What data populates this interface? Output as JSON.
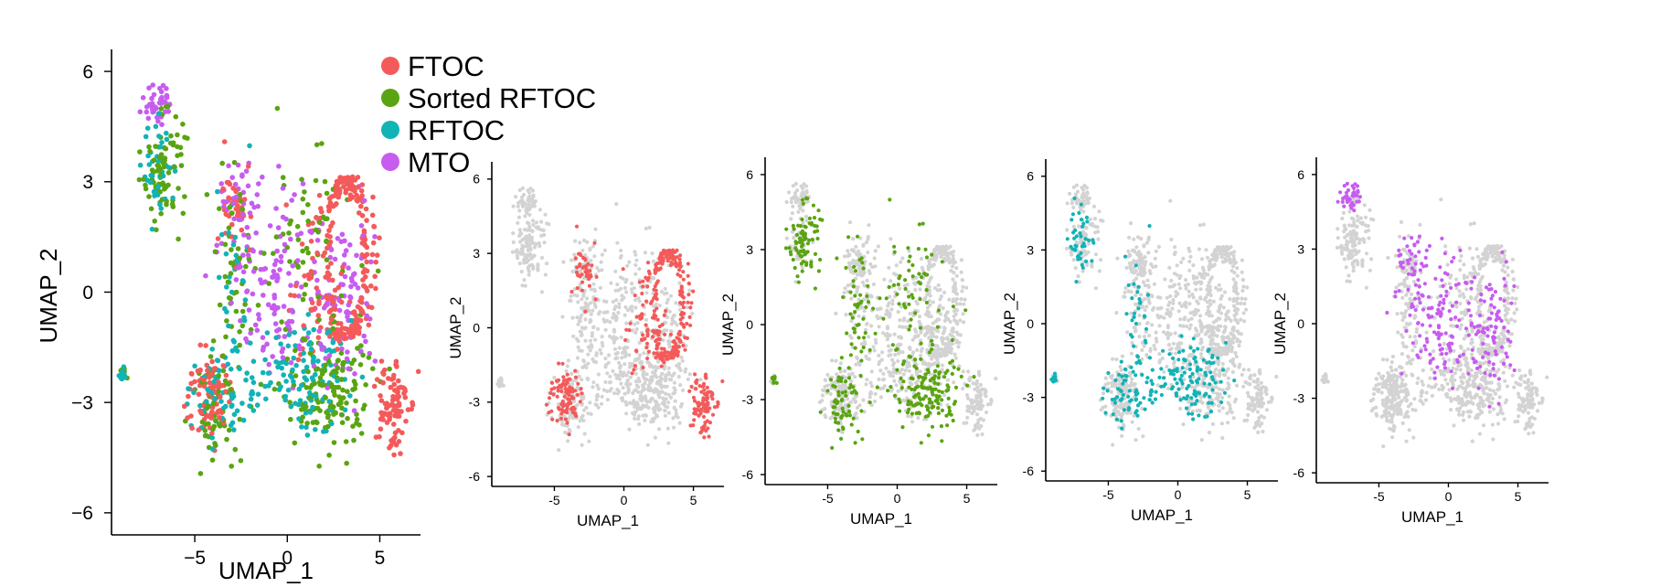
{
  "chart_data": [
    {
      "type": "scatter",
      "title": "",
      "xlabel": "UMAP_1",
      "ylabel": "UMAP_2",
      "xlim": [
        -9.5,
        7.2
      ],
      "ylim": [
        -6.6,
        6.4
      ],
      "x_ticks": [
        -5,
        0,
        5
      ],
      "y_ticks": [
        -6,
        -3,
        0,
        3,
        6
      ],
      "x_tick_labels": [
        "−5",
        "0",
        "5"
      ],
      "y_tick_labels": [
        "−6",
        "−3",
        "0",
        "3",
        "6"
      ],
      "legend": {
        "placement": "top-right",
        "entries": [
          {
            "label": "FTOC",
            "color": "#f45a5a"
          },
          {
            "label": "Sorted RFTOC",
            "color": "#5aa411"
          },
          {
            "label": "RFTOC",
            "color": "#12b3b6"
          },
          {
            "label": "MTO",
            "color": "#c75cf0"
          }
        ]
      },
      "series": [
        {
          "name": "FTOC",
          "color": "#f45a5a"
        },
        {
          "name": "Sorted RFTOC",
          "color": "#5aa411"
        },
        {
          "name": "RFTOC",
          "color": "#12b3b6"
        },
        {
          "name": "MTO",
          "color": "#c75cf0"
        }
      ]
    },
    {
      "type": "scatter",
      "xlabel": "UMAP_1",
      "ylabel": "UMAP_2",
      "xlim": [
        -9.5,
        7.2
      ],
      "ylim": [
        -6.4,
        6.4
      ],
      "x_ticks": [
        -5,
        0,
        5
      ],
      "y_ticks": [
        -6,
        -3,
        0,
        3,
        6
      ],
      "x_tick_labels": [
        "-5",
        "0",
        "5"
      ],
      "y_tick_labels": [
        "-6",
        "-3",
        "0",
        "3",
        "6"
      ],
      "highlight": "FTOC",
      "highlight_color": "#f45a5a",
      "background_color": "#d3d3d3"
    },
    {
      "type": "scatter",
      "xlabel": "UMAP_1",
      "ylabel": "UMAP_2",
      "xlim": [
        -9.5,
        7.2
      ],
      "ylim": [
        -6.4,
        6.4
      ],
      "x_ticks": [
        -5,
        0,
        5
      ],
      "y_ticks": [
        -6,
        -3,
        0,
        3,
        6
      ],
      "x_tick_labels": [
        "-5",
        "0",
        "5"
      ],
      "y_tick_labels": [
        "-6",
        "-3",
        "0",
        "3",
        "6"
      ],
      "highlight": "Sorted RFTOC",
      "highlight_color": "#5aa411",
      "background_color": "#d3d3d3"
    },
    {
      "type": "scatter",
      "xlabel": "UMAP_1",
      "ylabel": "UMAP_2",
      "xlim": [
        -9.5,
        7.2
      ],
      "ylim": [
        -6.4,
        6.4
      ],
      "x_ticks": [
        -5,
        0,
        5
      ],
      "y_ticks": [
        -6,
        -3,
        0,
        3,
        6
      ],
      "x_tick_labels": [
        "-5",
        "0",
        "5"
      ],
      "y_tick_labels": [
        "-6",
        "-3",
        "0",
        "3",
        "6"
      ],
      "highlight": "RFTOC",
      "highlight_color": "#12b3b6",
      "background_color": "#d3d3d3"
    },
    {
      "type": "scatter",
      "xlabel": "UMAP_1",
      "ylabel": "UMAP_2",
      "xlim": [
        -9.5,
        7.2
      ],
      "ylim": [
        -6.4,
        6.4
      ],
      "x_ticks": [
        -5,
        0,
        5
      ],
      "y_ticks": [
        -6,
        -3,
        0,
        3,
        6
      ],
      "x_tick_labels": [
        "-5",
        "0",
        "5"
      ],
      "y_tick_labels": [
        "-6",
        "-3",
        "0",
        "3",
        "6"
      ],
      "highlight": "MTO",
      "highlight_color": "#c75cf0",
      "background_color": "#d3d3d3"
    }
  ]
}
